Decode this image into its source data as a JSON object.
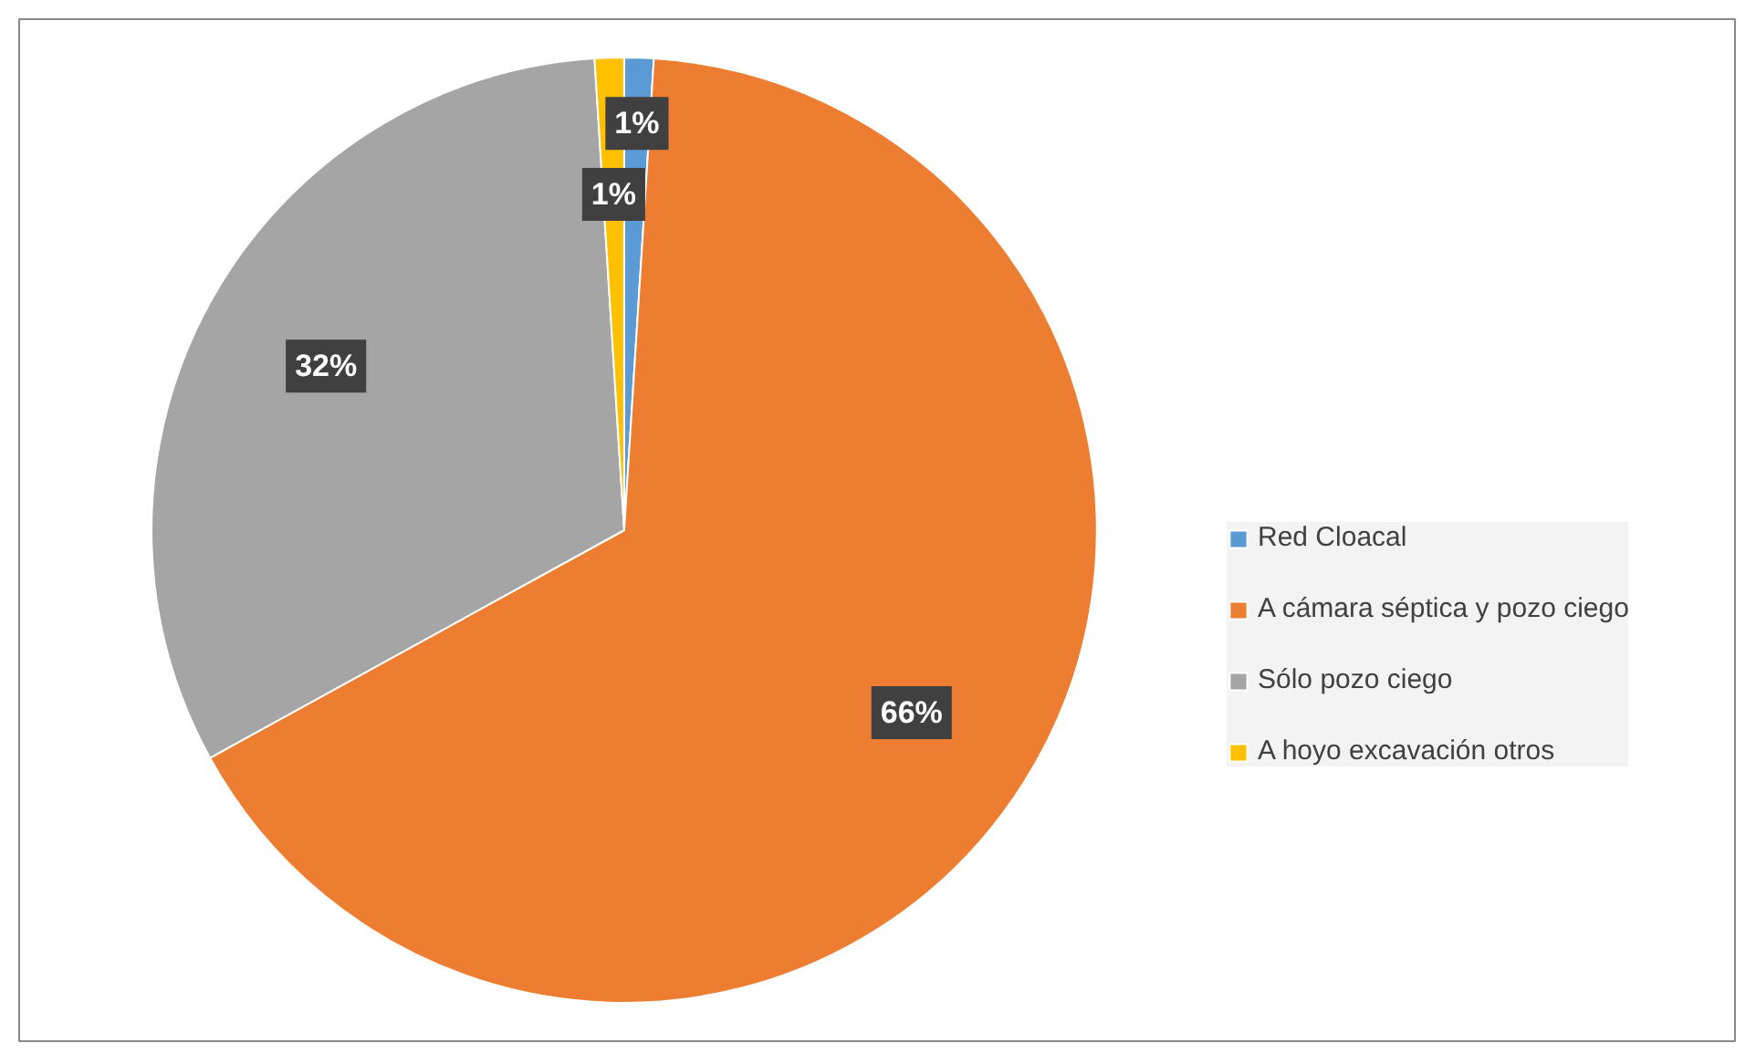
{
  "chart_data": {
    "type": "pie",
    "categories": [
      "Red Cloacal",
      "A cámara séptica y pozo ciego",
      "Sólo pozo ciego",
      "A hoyo excavación otros"
    ],
    "values": [
      1,
      66,
      32,
      1
    ],
    "colors": [
      "#5b9bd5",
      "#ed7d31",
      "#a5a5a5",
      "#ffc000"
    ],
    "data_labels": true,
    "value_labels": [
      "1%",
      "66%",
      "32%",
      "1%"
    ],
    "legend": "right"
  }
}
